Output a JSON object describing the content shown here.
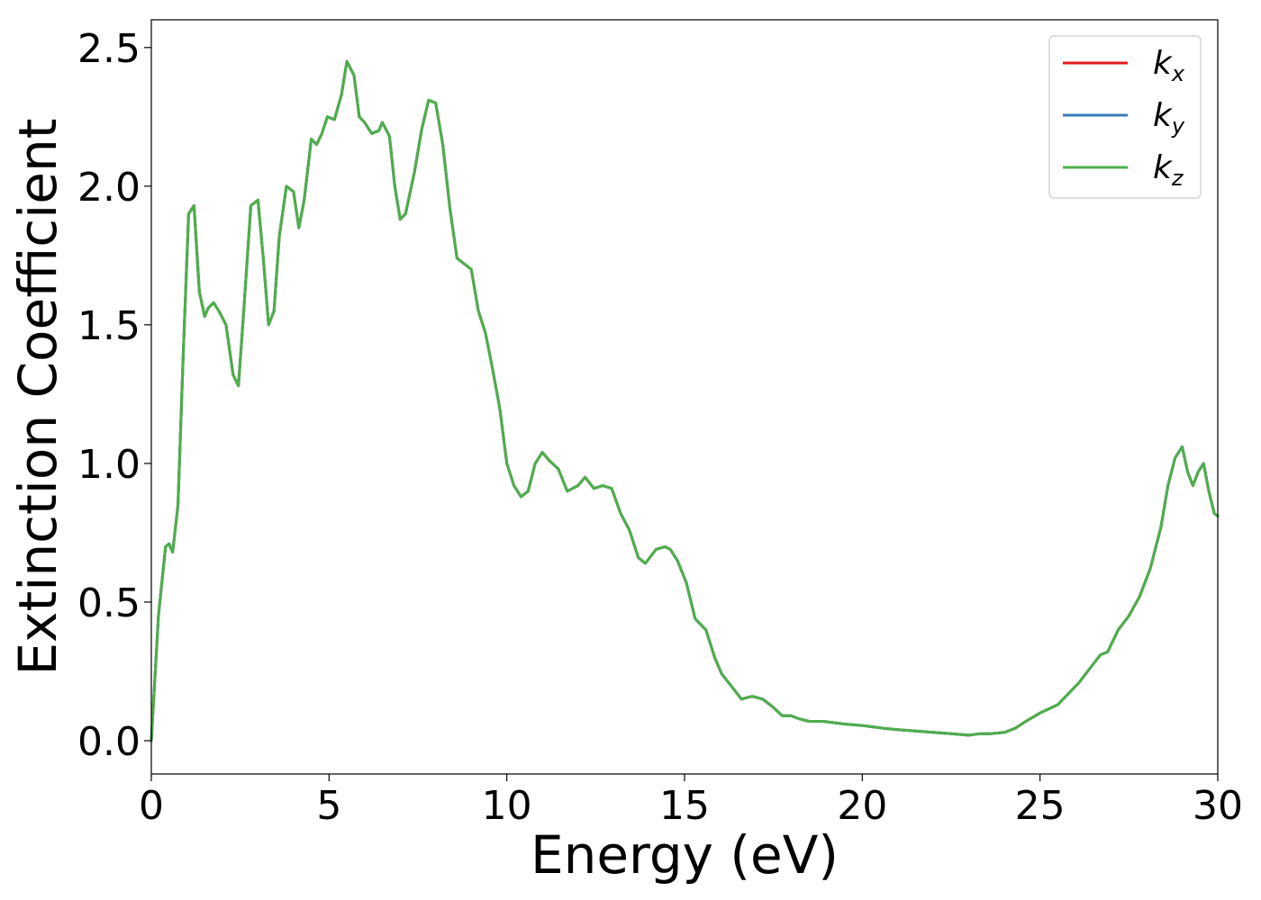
{
  "chart_data": {
    "type": "line",
    "xlabel": "Energy (eV)",
    "ylabel": "Extinction Coefficient",
    "xlim": [
      0,
      30
    ],
    "ylim": [
      -0.12,
      2.6
    ],
    "xticks": [
      0,
      5,
      10,
      15,
      20,
      25,
      30
    ],
    "xtick_labels": [
      "0",
      "5",
      "10",
      "15",
      "20",
      "25",
      "30"
    ],
    "yticks": [
      0.0,
      0.5,
      1.0,
      1.5,
      2.0,
      2.5
    ],
    "ytick_labels": [
      "0.0",
      "0.5",
      "1.0",
      "1.5",
      "2.0",
      "2.5"
    ],
    "grid": false,
    "legend_position": "top-right",
    "x": [
      0,
      0.2,
      0.4,
      0.5,
      0.6,
      0.75,
      0.9,
      1.05,
      1.2,
      1.35,
      1.5,
      1.6,
      1.75,
      1.9,
      2.1,
      2.3,
      2.45,
      2.6,
      2.8,
      3.0,
      3.15,
      3.3,
      3.45,
      3.6,
      3.8,
      4.0,
      4.15,
      4.3,
      4.5,
      4.65,
      4.8,
      4.95,
      5.15,
      5.35,
      5.5,
      5.7,
      5.85,
      6.0,
      6.2,
      6.4,
      6.5,
      6.7,
      6.85,
      7.0,
      7.15,
      7.4,
      7.6,
      7.8,
      8.0,
      8.2,
      8.4,
      8.6,
      8.8,
      9.0,
      9.2,
      9.4,
      9.6,
      9.8,
      10.0,
      10.2,
      10.4,
      10.6,
      10.8,
      11.0,
      11.2,
      11.45,
      11.7,
      12.0,
      12.2,
      12.45,
      12.7,
      12.95,
      13.2,
      13.45,
      13.7,
      13.9,
      14.2,
      14.45,
      14.6,
      14.8,
      15.05,
      15.3,
      15.6,
      15.85,
      16.05,
      16.3,
      16.6,
      16.9,
      17.2,
      17.5,
      17.75,
      18.0,
      18.2,
      18.5,
      18.9,
      19.2,
      19.5,
      20.0,
      20.6,
      21.0,
      21.5,
      22.0,
      22.5,
      23.0,
      23.3,
      23.6,
      24.0,
      24.3,
      24.6,
      25.0,
      25.5,
      25.8,
      26.1,
      26.4,
      26.7,
      26.9,
      27.2,
      27.5,
      27.8,
      28.1,
      28.4,
      28.6,
      28.8,
      29.0,
      29.15,
      29.3,
      29.45,
      29.6,
      29.75,
      29.9,
      30.0
    ],
    "series": [
      {
        "name": "k_x",
        "color": "#e41a1c",
        "values": [
          0.0,
          0.45,
          0.7,
          0.71,
          0.68,
          0.85,
          1.4,
          1.9,
          1.93,
          1.62,
          1.53,
          1.56,
          1.58,
          1.55,
          1.5,
          1.32,
          1.28,
          1.55,
          1.93,
          1.95,
          1.74,
          1.5,
          1.55,
          1.82,
          2.0,
          1.98,
          1.85,
          1.95,
          2.17,
          2.15,
          2.19,
          2.25,
          2.24,
          2.33,
          2.45,
          2.4,
          2.25,
          2.23,
          2.19,
          2.2,
          2.23,
          2.18,
          2.0,
          1.88,
          1.9,
          2.05,
          2.2,
          2.31,
          2.3,
          2.15,
          1.92,
          1.74,
          1.72,
          1.7,
          1.55,
          1.47,
          1.34,
          1.2,
          1.0,
          0.92,
          0.88,
          0.9,
          1.0,
          1.04,
          1.01,
          0.98,
          0.9,
          0.92,
          0.95,
          0.91,
          0.92,
          0.91,
          0.82,
          0.76,
          0.66,
          0.64,
          0.69,
          0.7,
          0.69,
          0.65,
          0.57,
          0.44,
          0.4,
          0.3,
          0.24,
          0.2,
          0.15,
          0.16,
          0.15,
          0.12,
          0.09,
          0.09,
          0.08,
          0.07,
          0.07,
          0.065,
          0.06,
          0.055,
          0.045,
          0.04,
          0.035,
          0.03,
          0.025,
          0.02,
          0.025,
          0.025,
          0.03,
          0.045,
          0.07,
          0.1,
          0.13,
          0.17,
          0.21,
          0.26,
          0.31,
          0.32,
          0.4,
          0.45,
          0.52,
          0.62,
          0.77,
          0.92,
          1.02,
          1.06,
          0.97,
          0.92,
          0.97,
          1.0,
          0.9,
          0.82,
          0.81
        ]
      },
      {
        "name": "k_y",
        "color": "#377eb8",
        "values": [
          0.0,
          0.45,
          0.7,
          0.71,
          0.68,
          0.85,
          1.4,
          1.9,
          1.93,
          1.62,
          1.53,
          1.56,
          1.58,
          1.55,
          1.5,
          1.32,
          1.28,
          1.55,
          1.93,
          1.95,
          1.74,
          1.5,
          1.55,
          1.82,
          2.0,
          1.98,
          1.85,
          1.95,
          2.17,
          2.15,
          2.19,
          2.25,
          2.24,
          2.33,
          2.45,
          2.4,
          2.25,
          2.23,
          2.19,
          2.2,
          2.23,
          2.18,
          2.0,
          1.88,
          1.9,
          2.05,
          2.2,
          2.31,
          2.3,
          2.15,
          1.92,
          1.74,
          1.72,
          1.7,
          1.55,
          1.47,
          1.34,
          1.2,
          1.0,
          0.92,
          0.88,
          0.9,
          1.0,
          1.04,
          1.01,
          0.98,
          0.9,
          0.92,
          0.95,
          0.91,
          0.92,
          0.91,
          0.82,
          0.76,
          0.66,
          0.64,
          0.69,
          0.7,
          0.69,
          0.65,
          0.57,
          0.44,
          0.4,
          0.3,
          0.24,
          0.2,
          0.15,
          0.16,
          0.15,
          0.12,
          0.09,
          0.09,
          0.08,
          0.07,
          0.07,
          0.065,
          0.06,
          0.055,
          0.045,
          0.04,
          0.035,
          0.03,
          0.025,
          0.02,
          0.025,
          0.025,
          0.03,
          0.045,
          0.07,
          0.1,
          0.13,
          0.17,
          0.21,
          0.26,
          0.31,
          0.32,
          0.4,
          0.45,
          0.52,
          0.62,
          0.77,
          0.92,
          1.02,
          1.06,
          0.97,
          0.92,
          0.97,
          1.0,
          0.9,
          0.82,
          0.81
        ]
      },
      {
        "name": "k_z",
        "color": "#4daf4a",
        "values": [
          0.0,
          0.45,
          0.7,
          0.71,
          0.68,
          0.85,
          1.4,
          1.9,
          1.93,
          1.62,
          1.53,
          1.56,
          1.58,
          1.55,
          1.5,
          1.32,
          1.28,
          1.55,
          1.93,
          1.95,
          1.74,
          1.5,
          1.55,
          1.82,
          2.0,
          1.98,
          1.85,
          1.95,
          2.17,
          2.15,
          2.19,
          2.25,
          2.24,
          2.33,
          2.45,
          2.4,
          2.25,
          2.23,
          2.19,
          2.2,
          2.23,
          2.18,
          2.0,
          1.88,
          1.9,
          2.05,
          2.2,
          2.31,
          2.3,
          2.15,
          1.92,
          1.74,
          1.72,
          1.7,
          1.55,
          1.47,
          1.34,
          1.2,
          1.0,
          0.92,
          0.88,
          0.9,
          1.0,
          1.04,
          1.01,
          0.98,
          0.9,
          0.92,
          0.95,
          0.91,
          0.92,
          0.91,
          0.82,
          0.76,
          0.66,
          0.64,
          0.69,
          0.7,
          0.69,
          0.65,
          0.57,
          0.44,
          0.4,
          0.3,
          0.24,
          0.2,
          0.15,
          0.16,
          0.15,
          0.12,
          0.09,
          0.09,
          0.08,
          0.07,
          0.07,
          0.065,
          0.06,
          0.055,
          0.045,
          0.04,
          0.035,
          0.03,
          0.025,
          0.02,
          0.025,
          0.025,
          0.03,
          0.045,
          0.07,
          0.1,
          0.13,
          0.17,
          0.21,
          0.26,
          0.31,
          0.32,
          0.4,
          0.45,
          0.52,
          0.62,
          0.77,
          0.92,
          1.02,
          1.06,
          0.97,
          0.92,
          0.97,
          1.0,
          0.9,
          0.82,
          0.81
        ]
      }
    ],
    "legend": [
      {
        "base": "k",
        "sub": "x"
      },
      {
        "base": "k",
        "sub": "y"
      },
      {
        "base": "k",
        "sub": "z"
      }
    ]
  }
}
